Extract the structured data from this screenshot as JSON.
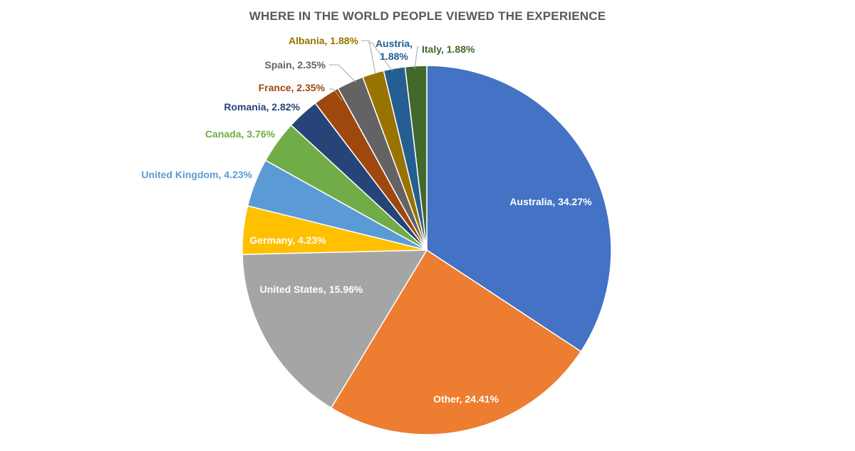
{
  "chart_data": {
    "type": "pie",
    "title": "WHERE IN THE WORLD PEOPLE VIEWED THE EXPERIENCE",
    "slices": [
      {
        "name": "Australia",
        "value": 34.27,
        "label": "Australia, 34.27%",
        "color": "#4472C4",
        "label_color": "#FFFFFF"
      },
      {
        "name": "Other",
        "value": 24.41,
        "label": "Other, 24.41%",
        "color": "#ED7D31",
        "label_color": "#FFFFFF"
      },
      {
        "name": "United States",
        "value": 15.96,
        "label": "United States, 15.96%",
        "color": "#A5A5A5",
        "label_color": "#FFFFFF"
      },
      {
        "name": "Germany",
        "value": 4.23,
        "label": "Germany, 4.23%",
        "color": "#FFC000",
        "label_color": "#FFFFFF"
      },
      {
        "name": "United Kingdom",
        "value": 4.23,
        "label": "United Kingdom, 4.23%",
        "color": "#5B9BD5",
        "label_color": "#5B9BD5"
      },
      {
        "name": "Canada",
        "value": 3.76,
        "label": "Canada, 3.76%",
        "color": "#70AD47",
        "label_color": "#70AD47"
      },
      {
        "name": "Romania",
        "value": 2.82,
        "label": "Romania, 2.82%",
        "color": "#264478",
        "label_color": "#264478"
      },
      {
        "name": "France",
        "value": 2.35,
        "label": "France, 2.35%",
        "color": "#9E480E",
        "label_color": "#9E480E"
      },
      {
        "name": "Spain",
        "value": 2.35,
        "label": "Spain, 2.35%",
        "color": "#636363",
        "label_color": "#636363"
      },
      {
        "name": "Albania",
        "value": 1.88,
        "label": "Albania, 1.88%",
        "color": "#997300",
        "label_color": "#997300"
      },
      {
        "name": "Austria",
        "value": 1.88,
        "label_lines": [
          "Austria,",
          "1.88%"
        ],
        "color": "#255E91",
        "label_color": "#255E91"
      },
      {
        "name": "Italy",
        "value": 1.88,
        "label": "Italy, 1.88%",
        "color": "#43682B",
        "label_color": "#43682B"
      }
    ],
    "start_angle": "12 o'clock",
    "direction": "clockwise",
    "legend": "none",
    "data_labels": "category name and percentage"
  }
}
